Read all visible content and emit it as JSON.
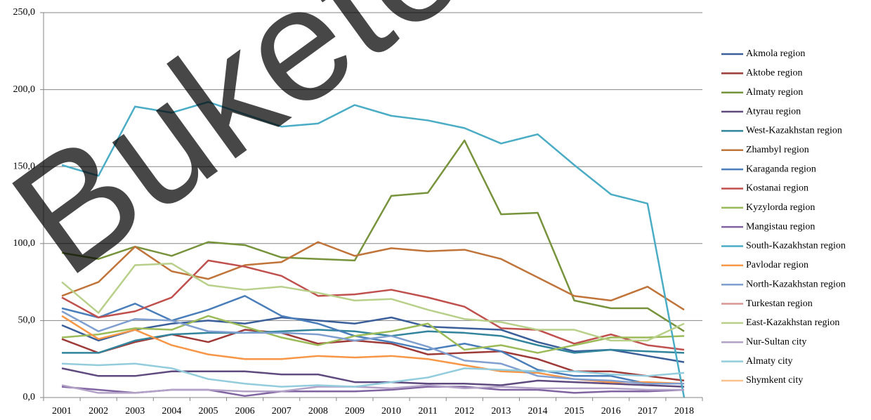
{
  "chart_data": {
    "type": "line",
    "watermark": "Buketo",
    "categories": [
      "2001",
      "2002",
      "2003",
      "2004",
      "2005",
      "2006",
      "2007",
      "2008",
      "2009",
      "2010",
      "2011",
      "2012",
      "2013",
      "2014",
      "2015",
      "2016",
      "2017",
      "2018"
    ],
    "ylim": [
      0,
      250
    ],
    "yticks": [
      {
        "value": 0,
        "label": "0,0"
      },
      {
        "value": 50,
        "label": "50,0"
      },
      {
        "value": 100,
        "label": "100,0"
      },
      {
        "value": 150,
        "label": "150,0"
      },
      {
        "value": 200,
        "label": "200,0"
      },
      {
        "value": 250,
        "label": "250,0"
      }
    ],
    "grid": true,
    "legend": "right",
    "series": [
      {
        "name": "Akmola region",
        "color": "#3b5f9a",
        "values": [
          47,
          37,
          44,
          48,
          50,
          48,
          52,
          50,
          48,
          52,
          46,
          45,
          44,
          36,
          30,
          31,
          27,
          23
        ]
      },
      {
        "name": "Aktobe region",
        "color": "#9e3a37",
        "values": [
          38,
          29,
          36,
          41,
          36,
          44,
          42,
          35,
          37,
          35,
          28,
          29,
          30,
          25,
          17,
          17,
          14,
          11
        ]
      },
      {
        "name": "Almaty region",
        "color": "#77933c",
        "values": [
          94,
          90,
          98,
          92,
          101,
          99,
          91,
          90,
          89,
          131,
          133,
          167,
          119,
          120,
          63,
          58,
          58,
          43
        ]
      },
      {
        "name": "Atyrau region",
        "color": "#5f4a7f",
        "values": [
          19,
          14,
          14,
          17,
          17,
          17,
          15,
          15,
          10,
          10,
          9,
          9,
          8,
          11,
          10,
          9,
          8,
          7
        ]
      },
      {
        "name": "West-Kazakhstan region",
        "color": "#31849b",
        "values": [
          29,
          29,
          37,
          41,
          42,
          42,
          43,
          44,
          43,
          40,
          43,
          42,
          40,
          34,
          29,
          31,
          30,
          29
        ]
      },
      {
        "name": "Zhambyl region",
        "color": "#c0743a",
        "values": [
          66,
          75,
          98,
          82,
          77,
          86,
          88,
          101,
          92,
          97,
          95,
          96,
          90,
          78,
          66,
          63,
          72,
          57
        ]
      },
      {
        "name": "Karaganda region",
        "color": "#4a7ebb",
        "values": [
          58,
          52,
          61,
          50,
          57,
          66,
          53,
          48,
          40,
          36,
          31,
          35,
          30,
          18,
          14,
          14,
          9,
          9
        ]
      },
      {
        "name": "Kostanai region",
        "color": "#c0504d",
        "values": [
          65,
          52,
          56,
          65,
          89,
          85,
          79,
          66,
          67,
          70,
          65,
          59,
          45,
          44,
          35,
          41,
          34,
          31
        ]
      },
      {
        "name": "Kyzylorda region",
        "color": "#9bbb59",
        "values": [
          39,
          41,
          45,
          44,
          53,
          46,
          39,
          34,
          40,
          43,
          48,
          31,
          34,
          29,
          34,
          39,
          39,
          40
        ]
      },
      {
        "name": "Mangistau region",
        "color": "#8064a2",
        "values": [
          7,
          5,
          3,
          5,
          5,
          1,
          4,
          4,
          4,
          5,
          7,
          7,
          5,
          5,
          3,
          4,
          4,
          5
        ]
      },
      {
        "name": "South-Kazakhstan region",
        "color": "#4bacc6",
        "values": [
          151,
          144,
          189,
          185,
          192,
          184,
          176,
          178,
          190,
          183,
          180,
          175,
          165,
          171,
          151,
          132,
          126,
          0
        ]
      },
      {
        "name": "Pavlodar region",
        "color": "#f79646",
        "values": [
          53,
          38,
          44,
          34,
          28,
          25,
          25,
          27,
          26,
          27,
          25,
          21,
          17,
          16,
          12,
          10,
          10,
          9
        ]
      },
      {
        "name": "North-Kazakhstan region",
        "color": "#7f9fd0",
        "values": [
          56,
          43,
          51,
          50,
          43,
          42,
          42,
          41,
          37,
          40,
          33,
          24,
          22,
          14,
          12,
          11,
          9,
          9
        ]
      },
      {
        "name": "Turkestan region",
        "color": "#d99694",
        "values": [
          null,
          null,
          null,
          null,
          null,
          null,
          null,
          null,
          null,
          null,
          null,
          null,
          null,
          null,
          null,
          null,
          null,
          8
        ]
      },
      {
        "name": "East-Kazakhstan region",
        "color": "#b8d08a",
        "values": [
          75,
          55,
          86,
          87,
          73,
          70,
          72,
          68,
          63,
          64,
          57,
          51,
          49,
          44,
          44,
          37,
          37,
          48
        ]
      },
      {
        "name": "Nur-Sultan city",
        "color": "#b3a2c7",
        "values": [
          8,
          3,
          3,
          5,
          5,
          4,
          4,
          7,
          7,
          6,
          8,
          6,
          7,
          6,
          6,
          6,
          5,
          5
        ]
      },
      {
        "name": "Almaty city",
        "color": "#93cddd",
        "values": [
          22,
          21,
          22,
          19,
          12,
          9,
          7,
          8,
          7,
          10,
          13,
          19,
          18,
          17,
          17,
          15,
          14,
          16
        ]
      },
      {
        "name": "Shymkent city",
        "color": "#fac090",
        "values": [
          null,
          null,
          null,
          null,
          null,
          null,
          null,
          null,
          null,
          null,
          null,
          null,
          null,
          null,
          null,
          null,
          null,
          9
        ]
      }
    ]
  }
}
